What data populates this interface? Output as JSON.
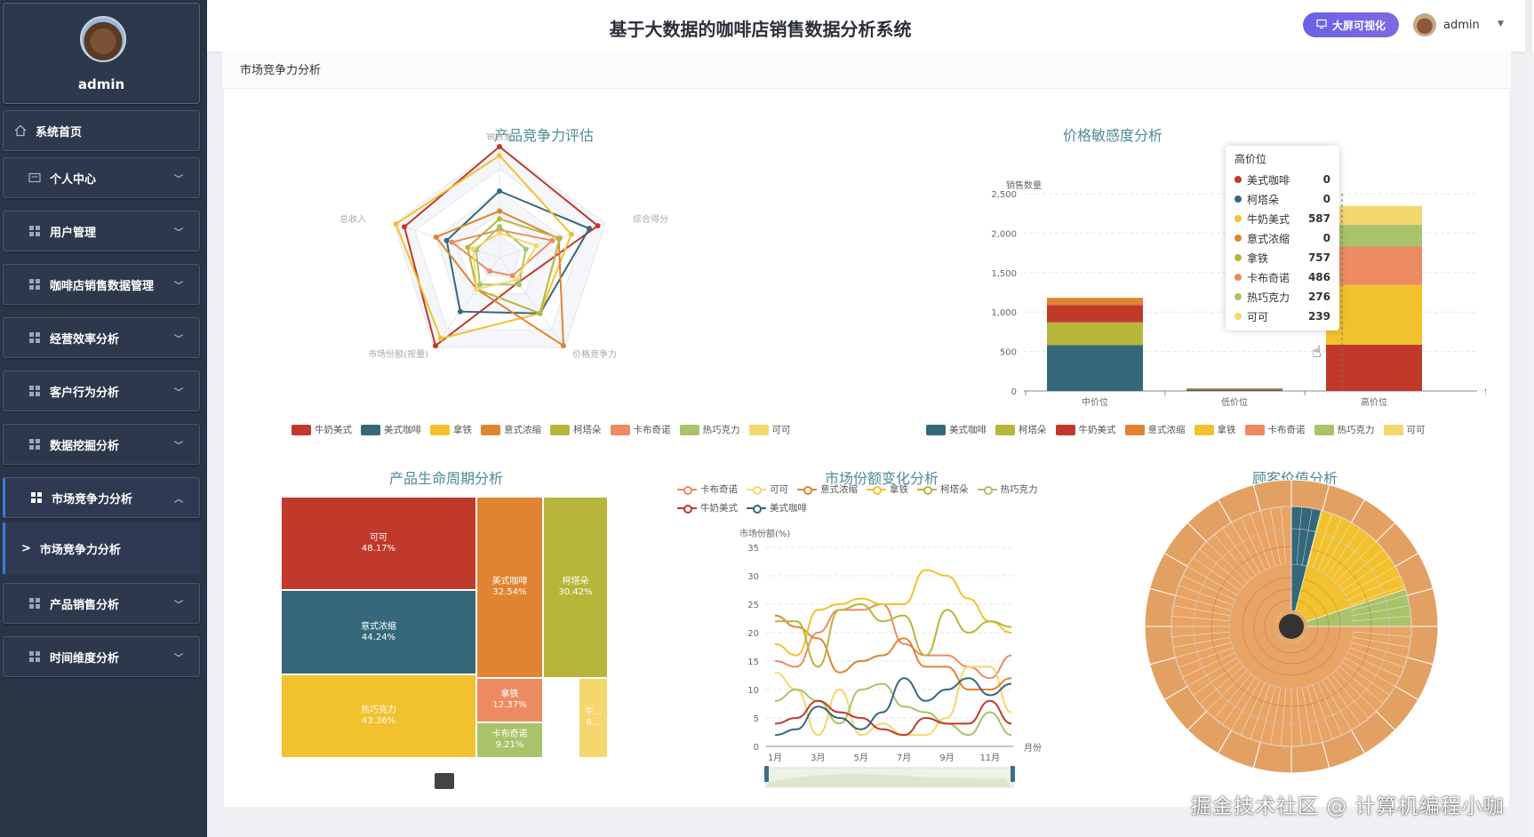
{
  "sidebar": {
    "username": "admin",
    "home": "系统首页",
    "menu": [
      "个人中心",
      "用户管理",
      "咖啡店销售数据管理",
      "经营效率分析",
      "客户行为分析",
      "数据挖掘分析",
      "市场竞争力分析"
    ],
    "active_sub": "市场竞争力分析",
    "menu_after": [
      "产品销售分析",
      "时间维度分析"
    ]
  },
  "header": {
    "title": "基于大数据的咖啡店销售数据分析系统",
    "bigscreen_button": "大屏可视化",
    "user": "admin"
  },
  "breadcrumb": "市场竞争力分析",
  "colors": {
    "牛奶美式": "#c0392b",
    "美式咖啡": "#34687a",
    "拿铁": "#f2c12e",
    "意式浓缩": "#e08431",
    "柯塔朵": "#b7b63a",
    "卡布奇诺": "#ec8b62",
    "热巧克力": "#a9c36a",
    "可可": "#f4d76d"
  },
  "radar": {
    "title": "产品竞争力评估",
    "indicators": [
      "销售量",
      "综合得分",
      "价格竞争力",
      "市场份额(按量)",
      "总收入"
    ],
    "legend": [
      "牛奶美式",
      "美式咖啡",
      "拿铁",
      "意式浓缩",
      "柯塔朵",
      "卡布奇诺",
      "热巧克力",
      "可可"
    ]
  },
  "price": {
    "title": "价格敏感度分析",
    "ylabel": "销售数量",
    "xlabel": "价格区间",
    "legend": [
      "美式咖啡",
      "柯塔朵",
      "牛奶美式",
      "意式浓缩",
      "拿铁",
      "卡布奇诺",
      "热巧克力",
      "可可"
    ],
    "tooltip": {
      "title": "高价位",
      "rows": [
        {
          "name": "美式咖啡",
          "value": "0",
          "color": "#c0392b"
        },
        {
          "name": "柯塔朵",
          "value": "0",
          "color": "#34687a"
        },
        {
          "name": "牛奶美式",
          "value": "587",
          "color": "#f2c12e"
        },
        {
          "name": "意式浓缩",
          "value": "0",
          "color": "#e08431"
        },
        {
          "name": "拿铁",
          "value": "757",
          "color": "#b7b63a"
        },
        {
          "name": "卡布奇诺",
          "value": "486",
          "color": "#ec8b62"
        },
        {
          "name": "热巧克力",
          "value": "276",
          "color": "#a9c36a"
        },
        {
          "name": "可可",
          "value": "239",
          "color": "#f4d76d"
        }
      ]
    }
  },
  "lifecycle": {
    "title": "产品生命周期分析",
    "cells": [
      {
        "name": "可可",
        "pct": "48.17%"
      },
      {
        "name": "意式浓缩",
        "pct": "44.24%"
      },
      {
        "name": "热巧克力",
        "pct": "43.36%"
      },
      {
        "name": "美式咖啡",
        "pct": "32.54%"
      },
      {
        "name": "柯塔朵",
        "pct": "30.42%"
      },
      {
        "name": "拿铁",
        "pct": "12.37%"
      },
      {
        "name": "卡布奇诺",
        "pct": "9.21%"
      },
      {
        "name": "牛...",
        "pct": "6..."
      }
    ]
  },
  "share": {
    "title": "市场份额变化分析",
    "ylabel": "市场份额(%)",
    "xlabel": "月份",
    "legend": [
      "卡布奇诺",
      "可可",
      "意式浓缩",
      "拿铁",
      "柯塔朵",
      "热巧克力",
      "牛奶美式",
      "美式咖啡"
    ]
  },
  "customer": {
    "title": "顾客价值分析"
  },
  "watermark": "掘金技术社区 @ 计算机编程小咖",
  "chart_data": [
    {
      "type": "radar",
      "title": "产品竞争力评估",
      "indicators": [
        "销售量",
        "综合得分",
        "价格竞争力",
        "市场份额(按量)",
        "总收入"
      ],
      "series": [
        {
          "name": "牛奶美式",
          "values": [
            1.0,
            0.93,
            0.28,
            0.98,
            0.9
          ]
        },
        {
          "name": "美式咖啡",
          "values": [
            0.6,
            0.85,
            0.62,
            0.6,
            0.5
          ]
        },
        {
          "name": "拿铁",
          "values": [
            0.92,
            0.68,
            0.62,
            0.9,
            0.98
          ]
        },
        {
          "name": "意式浓缩",
          "values": [
            0.42,
            0.56,
            0.98,
            0.35,
            0.6
          ]
        },
        {
          "name": "柯塔朵",
          "values": [
            0.35,
            0.57,
            0.62,
            0.35,
            0.3
          ]
        },
        {
          "name": "卡布奇诺",
          "values": [
            0.25,
            0.5,
            0.2,
            0.15,
            0.45
          ]
        },
        {
          "name": "热巧克力",
          "values": [
            0.28,
            0.25,
            0.3,
            0.3,
            0.22
          ]
        },
        {
          "name": "可可",
          "values": [
            0.22,
            0.35,
            0.25,
            0.35,
            0.25
          ]
        }
      ]
    },
    {
      "type": "bar",
      "title": "价格敏感度分析",
      "categories": [
        "中价位",
        "低价位",
        "高价位"
      ],
      "ylim": [
        0,
        2500
      ],
      "yticks": [
        0,
        500,
        1000,
        1500,
        2000,
        2500
      ],
      "series": [
        {
          "name": "美式咖啡",
          "values": [
            580,
            20,
            0
          ]
        },
        {
          "name": "柯塔朵",
          "values": [
            290,
            0,
            0
          ]
        },
        {
          "name": "牛奶美式",
          "values": [
            220,
            0,
            587
          ]
        },
        {
          "name": "意式浓缩",
          "values": [
            90,
            15,
            0
          ]
        },
        {
          "name": "拿铁",
          "values": [
            0,
            0,
            757
          ]
        },
        {
          "name": "卡布奇诺",
          "values": [
            0,
            0,
            486
          ]
        },
        {
          "name": "热巧克力",
          "values": [
            0,
            0,
            276
          ]
        },
        {
          "name": "可可",
          "values": [
            0,
            0,
            239
          ]
        }
      ]
    },
    {
      "type": "line",
      "title": "市场份额变化分析",
      "x": [
        "1月",
        "2月",
        "3月",
        "4月",
        "5月",
        "6月",
        "7月",
        "8月",
        "9月",
        "10月",
        "11月",
        "12月"
      ],
      "xticks": [
        "1月",
        "3月",
        "5月",
        "7月",
        "9月",
        "11月"
      ],
      "ylim": [
        0,
        35
      ],
      "yticks": [
        0,
        5,
        10,
        15,
        20,
        25,
        30,
        35
      ],
      "series": [
        {
          "name": "卡布奇诺",
          "values": [
            15,
            14,
            20,
            24,
            24,
            25,
            18,
            16,
            16,
            14,
            12,
            16
          ]
        },
        {
          "name": "可可",
          "values": [
            13,
            10,
            2,
            10,
            2,
            4,
            2,
            2,
            5,
            14,
            14,
            6
          ]
        },
        {
          "name": "意式浓缩",
          "values": [
            23,
            21,
            19,
            13,
            15,
            16,
            19,
            14,
            14,
            10,
            10,
            12
          ]
        },
        {
          "name": "拿铁",
          "values": [
            18,
            16,
            24,
            25,
            26,
            25,
            25,
            31,
            30,
            26,
            22,
            20
          ]
        },
        {
          "name": "柯塔朵",
          "values": [
            22,
            22,
            14,
            24,
            25,
            22,
            23,
            16,
            24,
            20,
            22,
            21
          ]
        },
        {
          "name": "热巧克力",
          "values": [
            8,
            10,
            8,
            4,
            10,
            11,
            7,
            6,
            4,
            2,
            6,
            2
          ]
        },
        {
          "name": "牛奶美式",
          "values": [
            4,
            5,
            8,
            6,
            5,
            3,
            2,
            5,
            4,
            4,
            8,
            4
          ]
        },
        {
          "name": "美式咖啡",
          "values": [
            2,
            3,
            7,
            5,
            3,
            6,
            12,
            8,
            10,
            12,
            9,
            11
          ]
        }
      ]
    }
  ]
}
